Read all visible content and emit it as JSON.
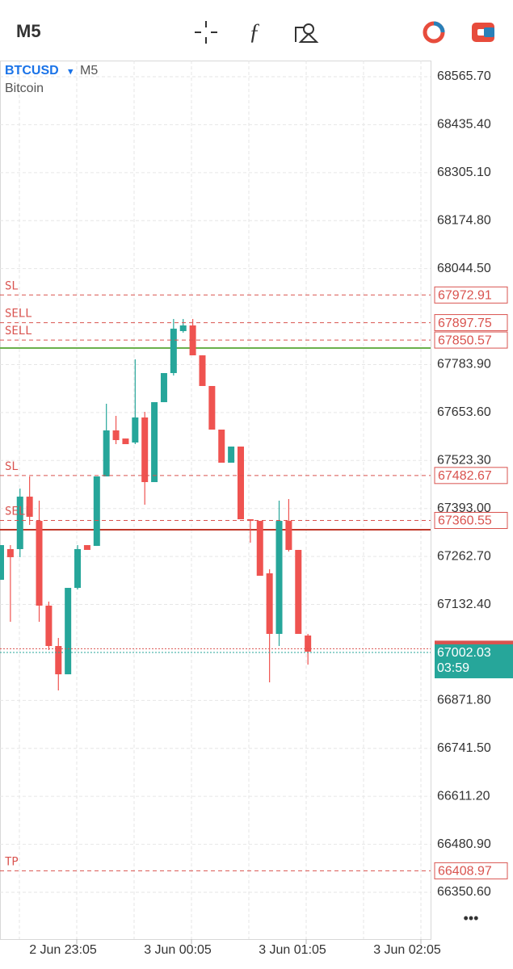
{
  "header": {
    "timeframe": "M5"
  },
  "symbol": {
    "ticker": "BTCUSD",
    "arrow": "▾",
    "timeframe": "M5",
    "name": "Bitcoin"
  },
  "menu": "•••",
  "chart_data": {
    "type": "candlestick",
    "up_color": "#26a69a",
    "down_color": "#ef5350",
    "ylim": [
      66223.4,
      68609.6
    ],
    "yticks": [
      {
        "value": 68565.7,
        "label": "68565.70"
      },
      {
        "value": 68435.4,
        "label": "68435.40"
      },
      {
        "value": 68305.1,
        "label": "68305.10"
      },
      {
        "value": 68174.8,
        "label": "68174.80"
      },
      {
        "value": 68044.5,
        "label": "68044.50"
      },
      {
        "value": 67783.9,
        "label": "67783.90"
      },
      {
        "value": 67653.6,
        "label": "67653.60"
      },
      {
        "value": 67523.3,
        "label": "67523.30"
      },
      {
        "value": 67393,
        "label": "67393.00"
      },
      {
        "value": 67262.7,
        "label": "67262.70"
      },
      {
        "value": 67132.4,
        "label": "67132.40"
      },
      {
        "value": 66871.8,
        "label": "66871.80"
      },
      {
        "value": 66741.5,
        "label": "66741.50"
      },
      {
        "value": 66611.2,
        "label": "66611.20"
      },
      {
        "value": 66480.9,
        "label": "66480.90"
      },
      {
        "value": 66350.6,
        "label": "66350.60"
      }
    ],
    "time_labels": [
      "2 Jun 23:05",
      "3 Jun 00:05",
      "3 Jun 01:05",
      "3 Jun 02:05"
    ],
    "open": [
      67199.3,
      67282.7,
      67282.7,
      67425.2,
      67359.4,
      67129.2,
      67019.5,
      66942.7,
      67177.4,
      67293.6,
      67291.4,
      67480.1,
      67605.1,
      67583.1,
      67572.2,
      67640.2,
      67464.7,
      67681.8,
      67760.8,
      67874.8,
      67890.2,
      67809.0,
      67725.7,
      67607.3,
      67517.4,
      67561.2,
      67363.8,
      67359.4,
      67216.9,
      67052.4,
      67359.4,
      67280.5,
      67048.0
    ],
    "high": [
      67293.6,
      67293.6,
      67447.2,
      67480.1,
      67414.3,
      67140.1,
      67041.4,
      67177.4,
      67293.6,
      67293.6,
      67480.1,
      67677.5,
      67644.6,
      67583.1,
      67798.1,
      67655.5,
      67681.8,
      67760.8,
      67907.7,
      67907.7,
      67907.7,
      67809.0,
      67725.7,
      67607.3,
      67561.2,
      67561.2,
      67363.8,
      67359.4,
      67227.8,
      67414.3,
      67418.7,
      67280.5,
      67052.4
    ],
    "low": [
      67199.3,
      67085.3,
      67260.7,
      67348.5,
      67085.3,
      67008.5,
      66898.9,
      66942.7,
      67173.0,
      67280.5,
      67291.4,
      67480.1,
      67567.8,
      67567.8,
      67567.8,
      67403.3,
      67464.7,
      67681.8,
      67754.2,
      67870.5,
      67809.0,
      67725.7,
      67607.3,
      67517.4,
      67517.4,
      67363.8,
      67300.2,
      67210.3,
      66920.8,
      67019.5,
      67276.1,
      67052.4,
      66969.0
    ],
    "close": [
      67293.6,
      67260.7,
      67425.2,
      67370.4,
      67129.2,
      67019.5,
      66942.7,
      67177.4,
      67282.7,
      67280.5,
      67480.1,
      67605.1,
      67578.8,
      67567.8,
      67640.2,
      67464.7,
      67681.8,
      67760.8,
      67881.4,
      67890.2,
      67809.0,
      67725.7,
      67607.3,
      67517.4,
      67561.2,
      67363.8,
      67359.4,
      67210.3,
      67052.4,
      67359.4,
      67280.5,
      67052.4,
      67004.1
    ],
    "levels": [
      {
        "label": "SL",
        "value": 67972.91,
        "color": "#d9534f",
        "style": "dashed"
      },
      {
        "label": "SELL",
        "value": 67897.75,
        "color": "#d9534f",
        "style": "dashed"
      },
      {
        "label": "SELL",
        "value": 67850.57,
        "color": "#d9534f",
        "style": "dashed"
      },
      {
        "label": "SL",
        "value": 67482.67,
        "color": "#d9534f",
        "style": "dashed"
      },
      {
        "label": "SELL",
        "value": 67360.55,
        "color": "#d9534f",
        "style": "dashed"
      },
      {
        "label": "TP",
        "value": 66408.97,
        "color": "#d9534f",
        "style": "dashed"
      }
    ],
    "position_lines": [
      {
        "value": 67828.8,
        "color": "#6ab04c"
      },
      {
        "value": 67335.3,
        "color": "#c0392b"
      }
    ],
    "bid": {
      "value": 67012.1,
      "color": "#d9534f"
    },
    "ask": {
      "value": 67002.03,
      "countdown": "03:59",
      "color": "#26a69a"
    }
  }
}
